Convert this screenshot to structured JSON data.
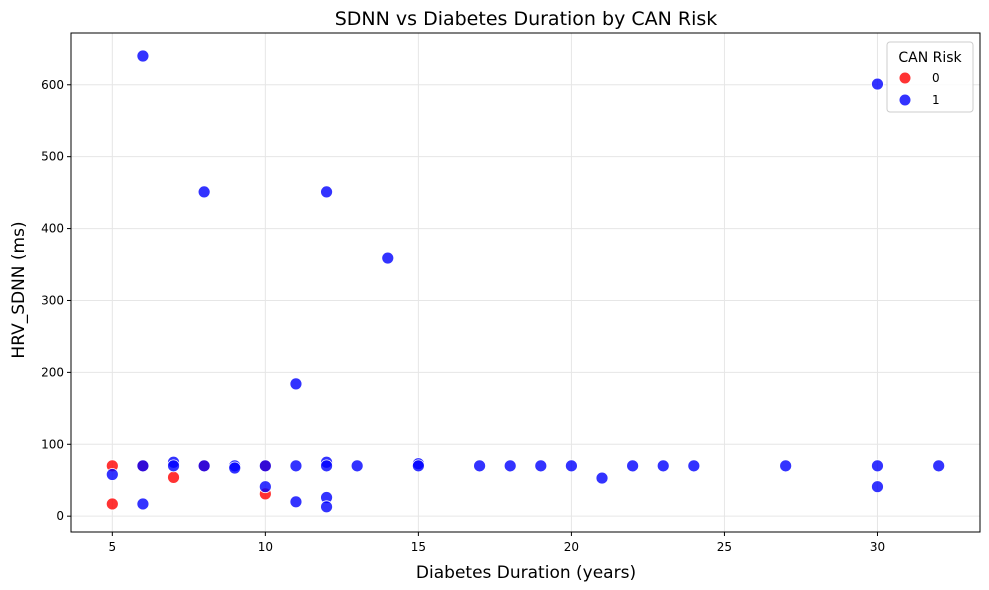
{
  "chart_data": {
    "type": "scatter",
    "title": "SDNN vs Diabetes Duration by CAN Risk",
    "xlabel": "Diabetes Duration (years)",
    "ylabel": "HRV_SDNN (ms)",
    "xlim": [
      3.65,
      33.35
    ],
    "ylim": [
      -22,
      672
    ],
    "xticks": [
      5,
      10,
      15,
      20,
      25,
      30
    ],
    "yticks": [
      0,
      100,
      200,
      300,
      400,
      500,
      600
    ],
    "grid": true,
    "legend": {
      "title": "CAN Risk",
      "placement": "top-right"
    },
    "series": [
      {
        "name": "0",
        "color": "#ff0000",
        "points": [
          [
            5,
            70
          ],
          [
            5,
            17
          ],
          [
            6,
            70
          ],
          [
            7,
            54
          ],
          [
            8,
            70
          ],
          [
            10,
            70
          ],
          [
            10,
            31
          ]
        ]
      },
      {
        "name": "1",
        "color": "#0000ff",
        "points": [
          [
            5,
            58
          ],
          [
            6,
            640
          ],
          [
            6,
            70
          ],
          [
            6,
            17
          ],
          [
            7,
            75
          ],
          [
            7,
            70
          ],
          [
            8,
            451
          ],
          [
            8,
            70
          ],
          [
            9,
            70
          ],
          [
            9,
            67
          ],
          [
            10,
            70
          ],
          [
            10,
            41
          ],
          [
            11,
            184
          ],
          [
            11,
            70
          ],
          [
            11,
            20
          ],
          [
            12,
            451
          ],
          [
            12,
            75
          ],
          [
            12,
            70
          ],
          [
            12,
            26
          ],
          [
            12,
            13
          ],
          [
            13,
            70
          ],
          [
            14,
            359
          ],
          [
            15,
            73
          ],
          [
            15,
            70
          ],
          [
            17,
            70
          ],
          [
            18,
            70
          ],
          [
            19,
            70
          ],
          [
            20,
            70
          ],
          [
            21,
            53
          ],
          [
            22,
            70
          ],
          [
            23,
            70
          ],
          [
            24,
            70
          ],
          [
            27,
            70
          ],
          [
            30,
            601
          ],
          [
            30,
            70
          ],
          [
            30,
            41
          ],
          [
            32,
            70
          ]
        ]
      }
    ]
  }
}
